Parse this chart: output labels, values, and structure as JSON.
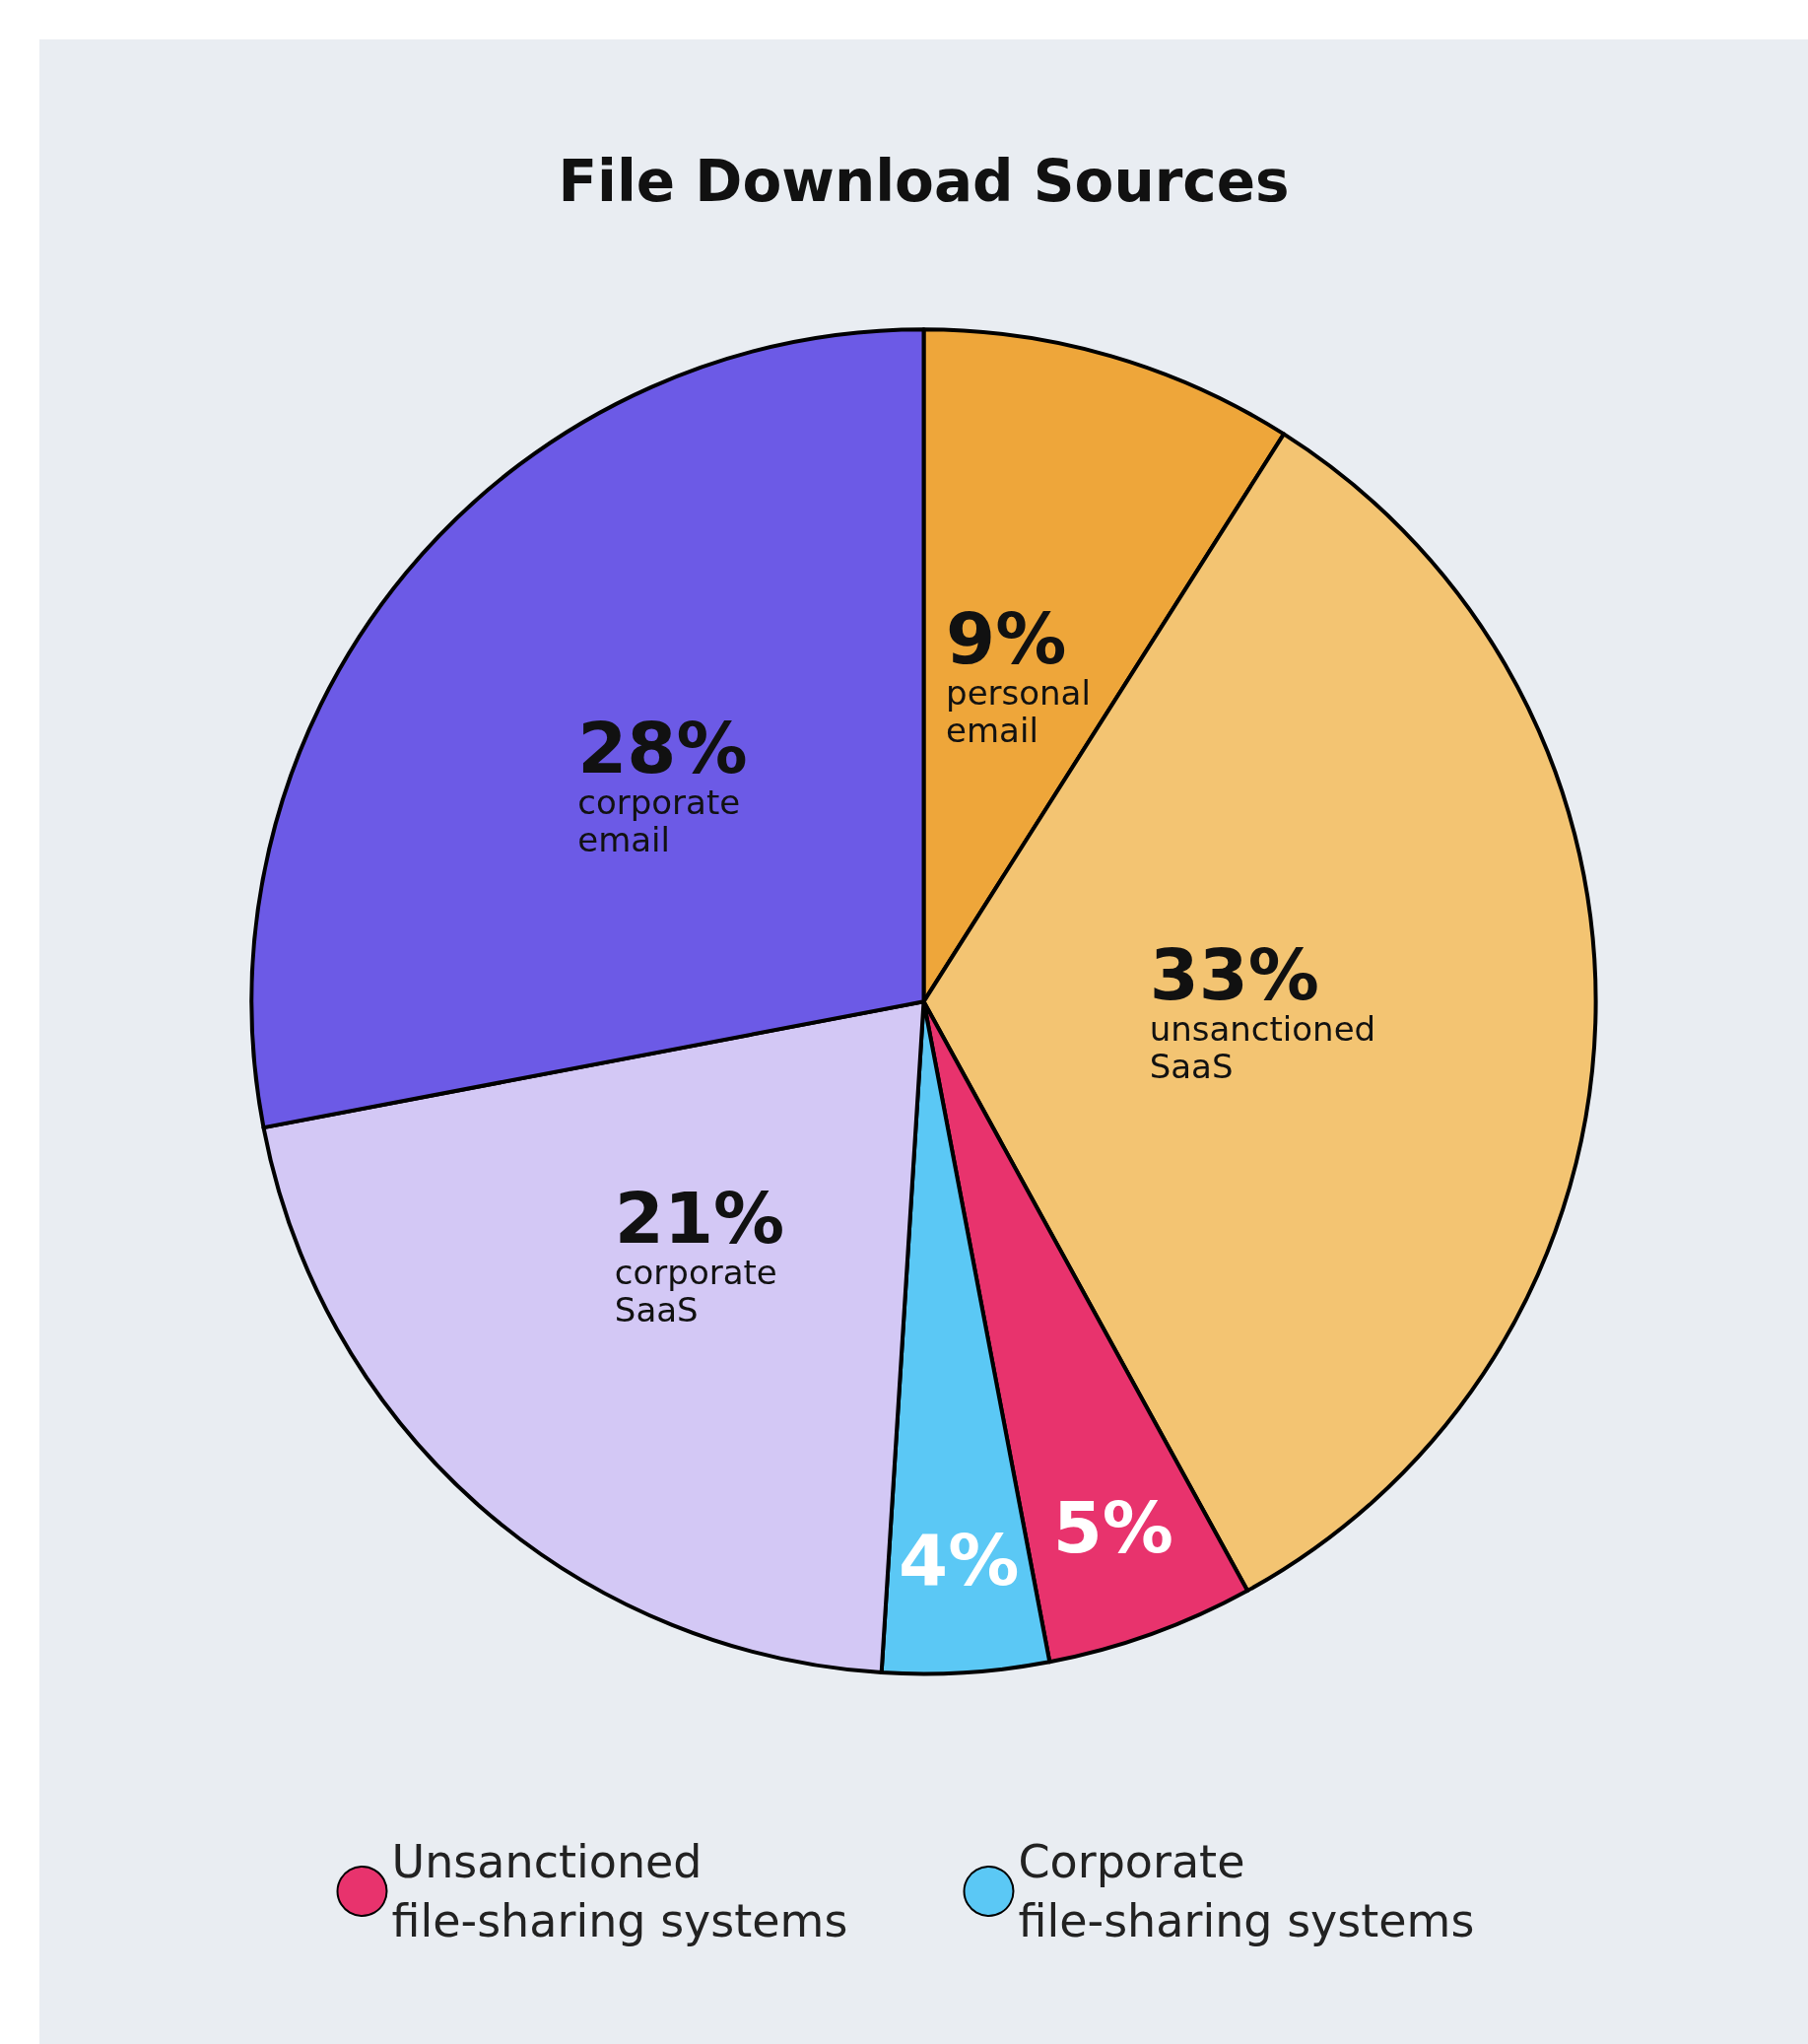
{
  "chart_data": {
    "type": "pie",
    "title": "File Download Sources",
    "categories": [
      "personal email",
      "unsanctioned SaaS",
      "Unsanctioned file-sharing systems",
      "Corporate file-sharing systems",
      "corporate SaaS",
      "corporate email"
    ],
    "values": [
      9,
      33,
      5,
      4,
      21,
      28
    ],
    "colors": [
      "#eea63a",
      "#f3c472",
      "#e8336d",
      "#5bc8f5",
      "#d3c8f5",
      "#6c5ae6"
    ],
    "value_labels": [
      "9%",
      "33%",
      "5%",
      "4%",
      "21%",
      "28%"
    ],
    "legend": "bottom"
  }
}
